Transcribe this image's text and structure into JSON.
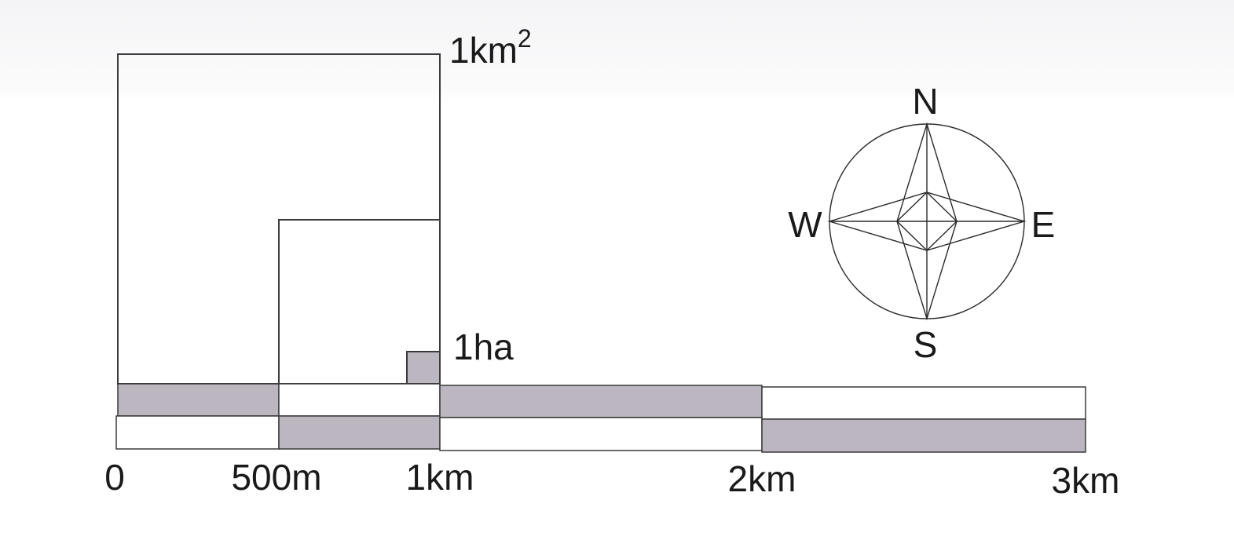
{
  "area_labels": {
    "km2_base": "1km",
    "km2_exponent": "2",
    "ha": "1ha"
  },
  "scale_bar": {
    "ticks": [
      "0",
      "500m",
      "1km",
      "2km",
      "3km"
    ],
    "colors": {
      "shaded": "#bcb6c0",
      "light": "#ffffff",
      "line": "#3a3a3a"
    }
  },
  "compass": {
    "north": "N",
    "south": "S",
    "east": "E",
    "west": "W"
  }
}
